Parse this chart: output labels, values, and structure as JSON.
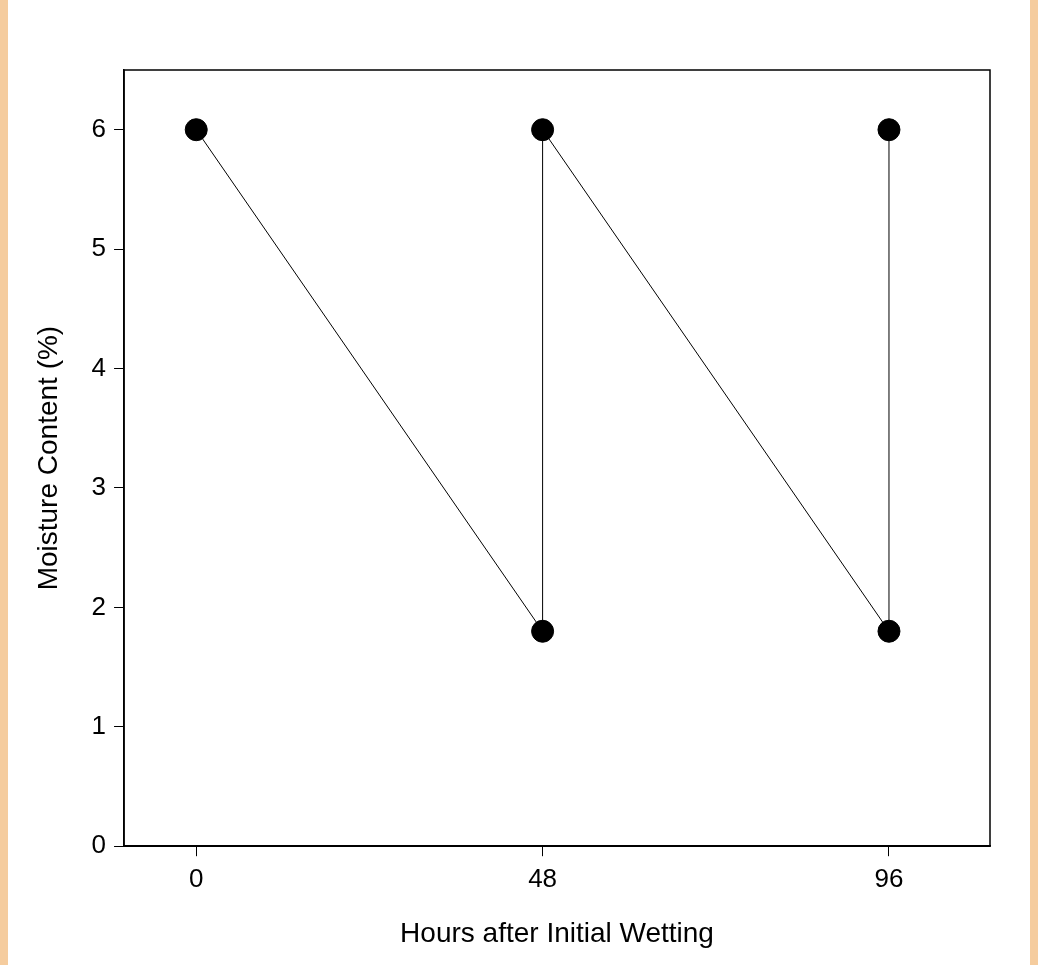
{
  "chart_data": {
    "type": "line",
    "xlabel": "Hours after Initial Wetting",
    "ylabel": "Moisture Content (%)",
    "x": [
      0,
      48,
      48,
      96,
      96
    ],
    "series": [
      {
        "color": "#000000",
        "values": [
          6,
          1.8,
          6,
          1.8,
          6
        ]
      }
    ],
    "xlim": [
      -10,
      110
    ],
    "xticks": [
      0,
      48,
      96
    ],
    "ylim": [
      0,
      6.5
    ],
    "yticks": [
      0,
      1,
      2,
      3,
      4,
      5,
      6
    ],
    "grid": false,
    "legend": false,
    "marker": "circle",
    "line_style": "solid"
  }
}
